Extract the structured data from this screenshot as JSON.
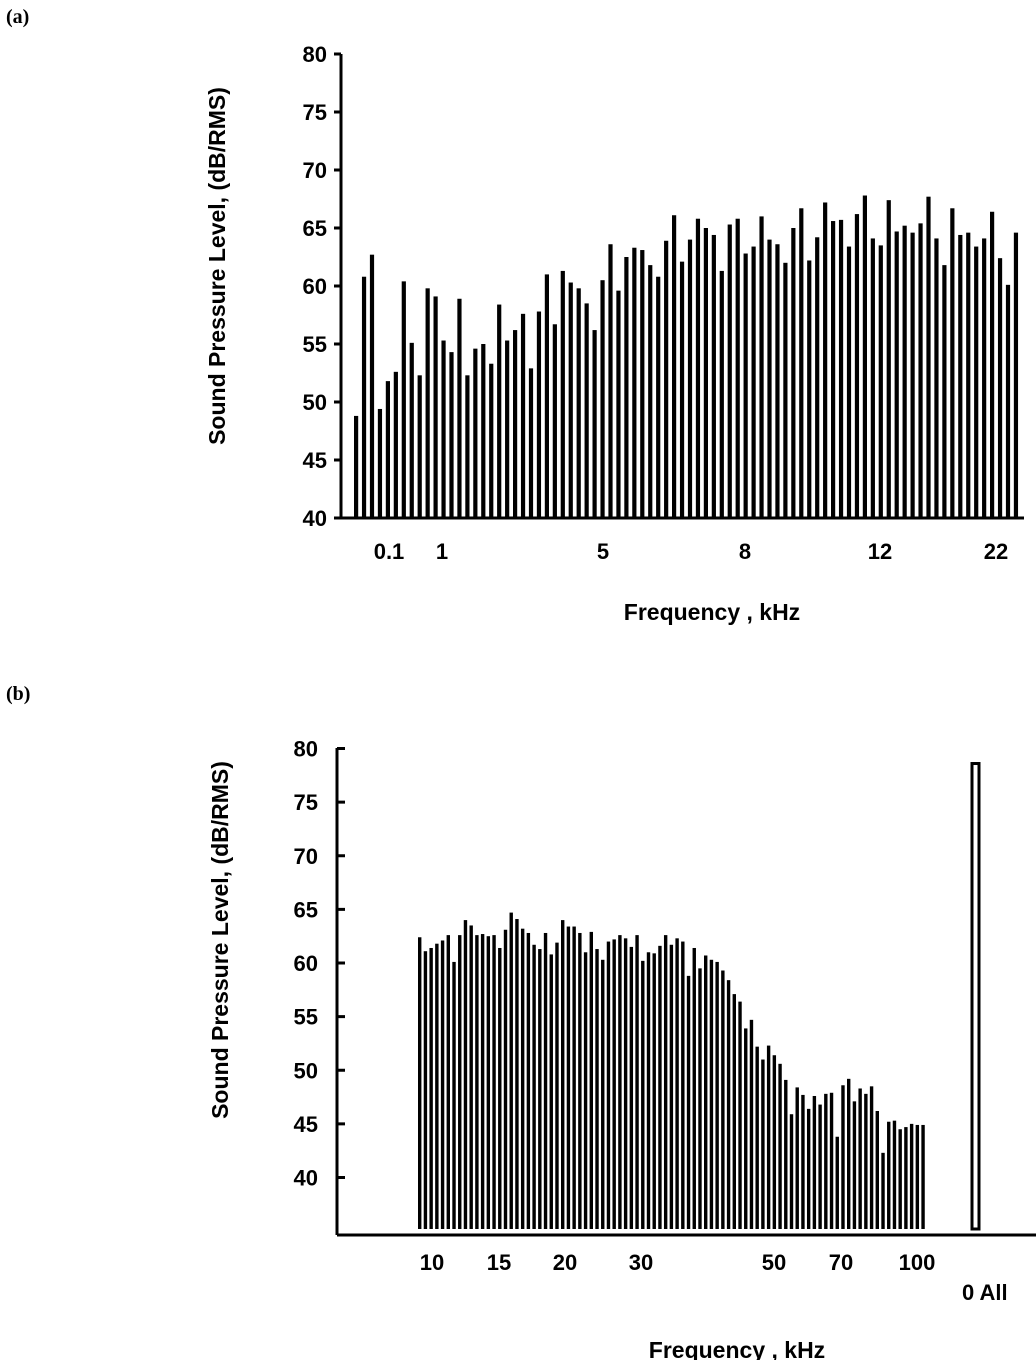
{
  "panels": [
    {
      "label": "(a)"
    },
    {
      "label": "(b)"
    }
  ],
  "chart_data": [
    {
      "type": "bar",
      "title": "",
      "ylabel": "Sound Pressure Level, (dB/RMS)",
      "xlabel": "Frequency , kHz",
      "ylim": [
        40,
        80
      ],
      "yticks": [
        40,
        45,
        50,
        55,
        60,
        65,
        70,
        75,
        80
      ],
      "xtick_labels": [
        "0.1",
        "1",
        "5",
        "8",
        "12",
        "22"
      ],
      "grid": false,
      "values": [
        48.8,
        60.8,
        62.7,
        49.4,
        51.8,
        52.6,
        60.4,
        55.1,
        52.3,
        59.8,
        59.1,
        55.3,
        54.3,
        58.9,
        52.3,
        54.6,
        55.0,
        53.3,
        58.4,
        55.3,
        56.2,
        57.6,
        52.9,
        57.8,
        61.0,
        56.7,
        61.3,
        60.3,
        59.8,
        58.5,
        56.2,
        60.5,
        63.6,
        59.6,
        62.5,
        63.3,
        63.1,
        61.8,
        60.8,
        63.9,
        66.1,
        62.1,
        64.0,
        65.8,
        65.0,
        64.4,
        61.3,
        65.3,
        65.8,
        62.8,
        63.4,
        66.0,
        64.0,
        63.6,
        62.0,
        65.0,
        66.7,
        62.2,
        64.2,
        67.2,
        65.6,
        65.7,
        63.4,
        66.2,
        67.8,
        64.1,
        63.5,
        67.4,
        64.7,
        65.2,
        64.6,
        65.4,
        67.7,
        64.1,
        61.8,
        66.7,
        64.4,
        64.6,
        63.4,
        64.1,
        66.4,
        62.4,
        60.1,
        64.6
      ]
    },
    {
      "type": "bar",
      "title": "",
      "ylabel": "Sound Pressure Level, (dB/RMS)",
      "xlabel": "Frequency , kHz",
      "ylim": [
        35,
        80
      ],
      "yticks": [
        40,
        45,
        50,
        55,
        60,
        65,
        70,
        75,
        80
      ],
      "xtick_labels": [
        "10",
        "15",
        "20",
        "30",
        "50",
        "70",
        "100"
      ],
      "extra_label": "0 All",
      "grid": false,
      "values": [
        62.4,
        61.1,
        61.4,
        61.8,
        62.1,
        62.6,
        60.1,
        62.6,
        64.0,
        63.5,
        62.6,
        62.7,
        62.5,
        62.6,
        61.4,
        63.1,
        64.7,
        64.1,
        63.2,
        62.8,
        61.7,
        61.3,
        62.8,
        60.8,
        61.9,
        64.0,
        63.4,
        63.4,
        62.8,
        61.0,
        62.9,
        61.3,
        60.3,
        62.0,
        62.2,
        62.6,
        62.3,
        61.5,
        62.6,
        60.2,
        61.0,
        60.9,
        61.6,
        62.6,
        61.7,
        62.3,
        62.0,
        58.8,
        61.4,
        59.5,
        60.7,
        60.3,
        60.1,
        59.3,
        58.4,
        57.1,
        56.4,
        53.9,
        54.7,
        52.2,
        51.0,
        52.3,
        51.4,
        50.6,
        49.1,
        45.9,
        48.4,
        47.7,
        46.4,
        47.6,
        46.8,
        47.8,
        47.9,
        43.8,
        48.6,
        49.2,
        47.1,
        48.3,
        47.8,
        48.5,
        46.2,
        42.3,
        45.2,
        45.3,
        44.5,
        44.7,
        45.0,
        44.9,
        44.9
      ],
      "overall": 78.6
    }
  ]
}
